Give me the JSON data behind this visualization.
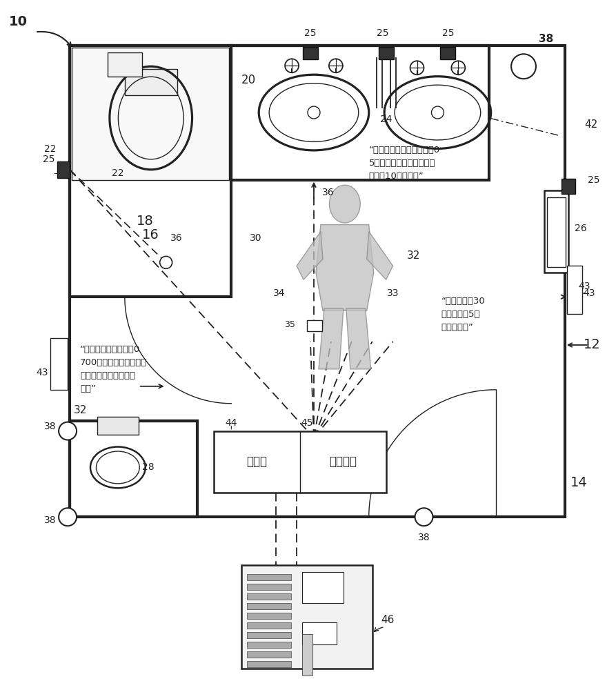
{
  "text_balloon1": "“约翰，你因使用皮液赚到0\n5个积点，因仅使用两张纸\n巾赚到10个积点。”",
  "text_balloon2": "“约翰，洗手30\n秒可以得到5个\n嘉奖积点。”",
  "text_balloon3": "“约翰，你今天燃烧了0\n700卡路里。你的脉搏和\n心率范围正常。干得不\n错！”",
  "controller_text": "控制器",
  "monitor_text": "监控系统",
  "dark": "#222222",
  "gray_person": "#b8b8b8",
  "lw_wall": 3.0,
  "lw_med": 1.8,
  "lw_thin": 1.0
}
